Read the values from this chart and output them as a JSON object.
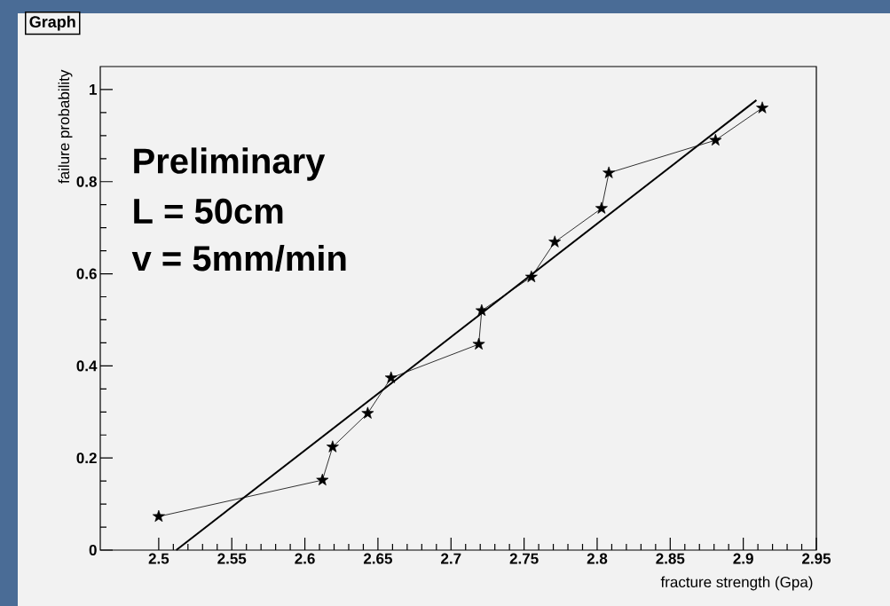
{
  "chart_data": {
    "type": "line",
    "title": "Graph",
    "xlabel": "fracture strength (Gpa)",
    "ylabel": "failure probability",
    "annotations": [
      "Preliminary",
      "L = 50cm",
      "v = 5mm/min"
    ],
    "xlim": [
      2.46,
      2.95
    ],
    "ylim": [
      0,
      1.05
    ],
    "xticks": [
      2.5,
      2.55,
      2.6,
      2.65,
      2.7,
      2.75,
      2.8,
      2.85,
      2.9,
      2.95
    ],
    "yticks": [
      0,
      0.2,
      0.4,
      0.6,
      0.8,
      1
    ],
    "series": [
      {
        "color": "#000000",
        "marker": "star",
        "x": [
          2.5,
          2.612,
          2.619,
          2.643,
          2.659,
          2.719,
          2.721,
          2.755,
          2.771,
          2.803,
          2.808,
          2.881,
          2.913
        ],
        "values": [
          0.073,
          0.152,
          0.224,
          0.297,
          0.374,
          0.447,
          0.52,
          0.593,
          0.669,
          0.742,
          0.819,
          0.89,
          0.96
        ]
      },
      {
        "color": "#000000",
        "marker": "none",
        "x": [
          2.512,
          2.909
        ],
        "values": [
          0,
          0.977
        ]
      }
    ]
  }
}
